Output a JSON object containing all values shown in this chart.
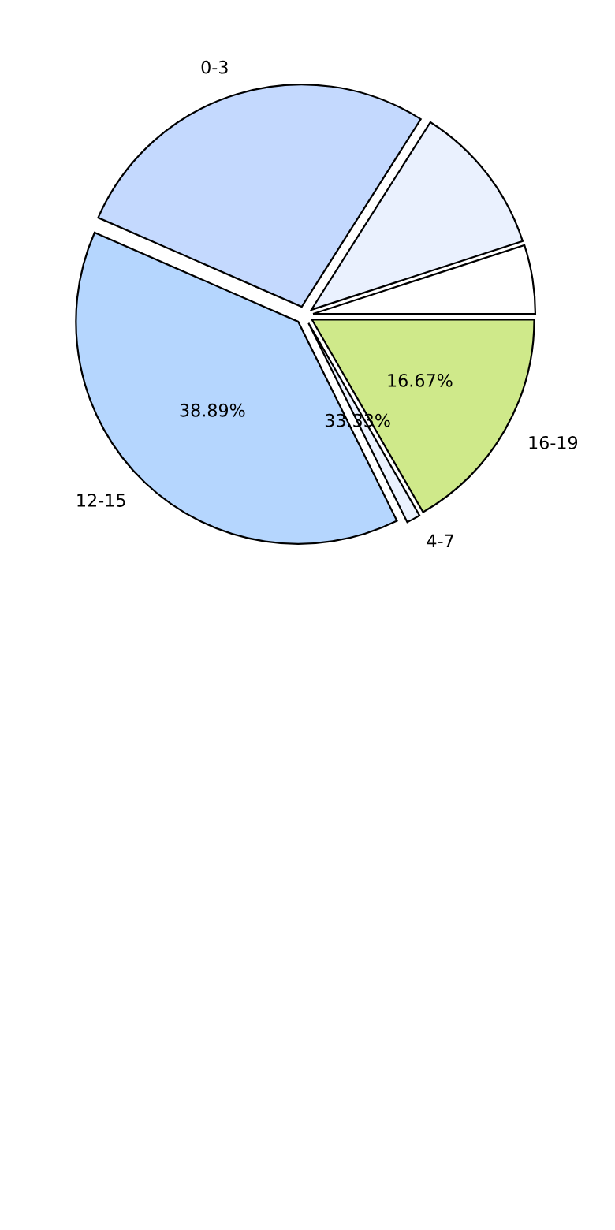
{
  "chart_data": {
    "type": "pie",
    "categories": [
      null,
      null,
      "0-3",
      "12-15",
      "4-7",
      "16-19"
    ],
    "values": [
      5,
      11,
      27.44,
      38.89,
      1,
      16.67
    ],
    "colors": [
      "#ffffff",
      "#eaf1fe",
      "#c4d9fe",
      "#b5d6fe",
      "#eaf1fe",
      "#cfe98a"
    ],
    "value_labels": [
      null,
      null,
      null,
      "38.89%",
      null,
      "16.67%"
    ],
    "annotations": [
      "33.33%"
    ]
  }
}
